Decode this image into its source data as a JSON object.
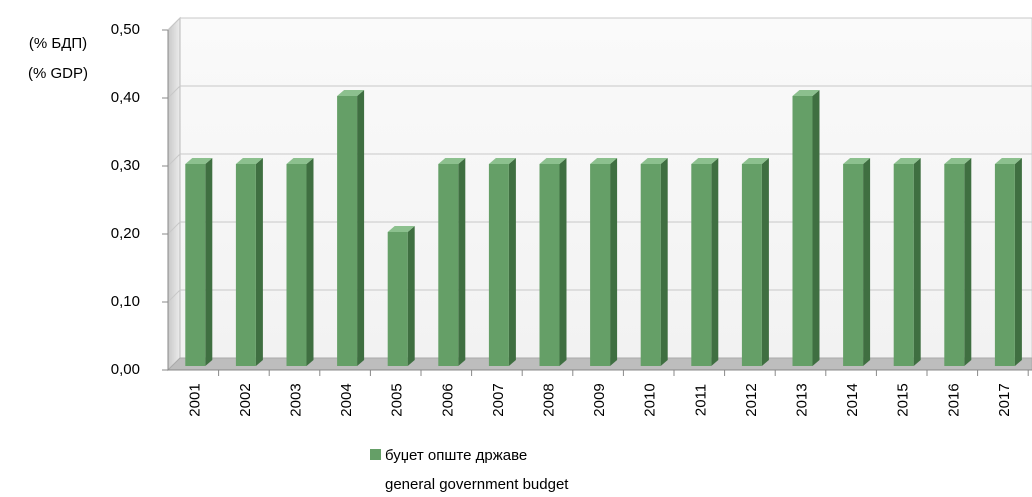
{
  "chart_data": {
    "type": "bar3d",
    "y_label": [
      "(% БДП)",
      "(% GDP)"
    ],
    "categories": [
      "2001",
      "2002",
      "2003",
      "2004",
      "2005",
      "2006",
      "2007",
      "2008",
      "2009",
      "2010",
      "2011",
      "2012",
      "2013",
      "2014",
      "2015",
      "2016",
      "2017"
    ],
    "series": [
      {
        "name": [
          "буџет опште државе",
          "general government budget"
        ],
        "color": "#659f67",
        "values": [
          0.3,
          0.3,
          0.3,
          0.4,
          0.2,
          0.3,
          0.3,
          0.3,
          0.3,
          0.3,
          0.3,
          0.3,
          0.4,
          0.3,
          0.3,
          0.3,
          0.3
        ]
      }
    ],
    "ylim": [
      0,
      0.5
    ],
    "yticks": [
      {
        "value": 0,
        "label": "0,00"
      },
      {
        "value": 0.1,
        "label": "0,10"
      },
      {
        "value": 0.2,
        "label": "0,20"
      },
      {
        "value": 0.3,
        "label": "0,30"
      },
      {
        "value": 0.4,
        "label": "0,40"
      },
      {
        "value": 0.5,
        "label": "0,50"
      }
    ],
    "grid": true
  }
}
